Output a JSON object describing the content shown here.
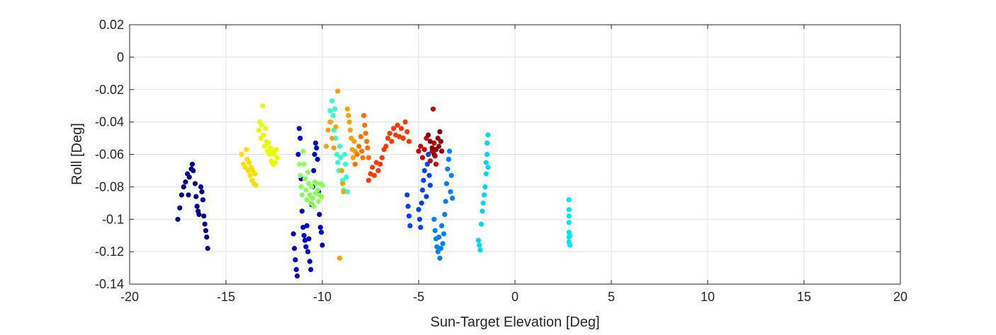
{
  "chart_data": {
    "type": "scatter",
    "title": "",
    "xlabel": "Sun-Target Elevation [Deg]",
    "ylabel": "Roll [Deg]",
    "xlim": [
      -20,
      20
    ],
    "ylim": [
      -0.14,
      0.02
    ],
    "x_ticks": [
      -20,
      -15,
      -10,
      -5,
      0,
      5,
      10,
      15,
      20
    ],
    "y_ticks": [
      0.02,
      0,
      -0.02,
      -0.04,
      -0.06,
      -0.08,
      -0.1,
      -0.12,
      -0.14
    ],
    "x_tick_labels": [
      "-20",
      "-15",
      "-10",
      "-5",
      "0",
      "5",
      "10",
      "15",
      "20"
    ],
    "y_tick_labels": [
      "0.02",
      "0",
      "-0.02",
      "-0.04",
      "-0.06",
      "-0.08",
      "-0.1",
      "-0.12",
      "-0.14"
    ],
    "grid": true,
    "box": true,
    "marker": "filled-circle",
    "colormap": "jet",
    "series": [
      {
        "color": "#00008F",
        "points": [
          [
            -17.5,
            -0.1
          ],
          [
            -17.4,
            -0.093
          ],
          [
            -17.3,
            -0.085
          ],
          [
            -17.2,
            -0.08
          ],
          [
            -17.1,
            -0.077
          ],
          [
            -17.0,
            -0.072
          ],
          [
            -16.95,
            -0.085
          ],
          [
            -16.9,
            -0.074
          ],
          [
            -16.8,
            -0.069
          ],
          [
            -16.75,
            -0.066
          ],
          [
            -16.7,
            -0.07
          ],
          [
            -16.6,
            -0.078
          ],
          [
            -16.55,
            -0.086
          ],
          [
            -16.5,
            -0.092
          ],
          [
            -16.45,
            -0.095
          ],
          [
            -16.4,
            -0.097
          ],
          [
            -16.3,
            -0.08
          ],
          [
            -16.25,
            -0.083
          ],
          [
            -16.2,
            -0.088
          ],
          [
            -16.15,
            -0.098
          ],
          [
            -16.1,
            -0.103
          ],
          [
            -16.05,
            -0.107
          ],
          [
            -16.0,
            -0.111
          ],
          [
            -15.95,
            -0.118
          ]
        ]
      },
      {
        "color": "#0000CF",
        "points": [
          [
            -11.5,
            -0.109
          ],
          [
            -11.45,
            -0.118
          ],
          [
            -11.4,
            -0.125
          ],
          [
            -11.35,
            -0.131
          ],
          [
            -11.3,
            -0.135
          ],
          [
            -11.25,
            -0.06
          ],
          [
            -11.2,
            -0.044
          ],
          [
            -11.15,
            -0.05
          ],
          [
            -11.1,
            -0.075
          ],
          [
            -11.05,
            -0.095
          ],
          [
            -11.0,
            -0.105
          ],
          [
            -10.95,
            -0.11
          ],
          [
            -10.9,
            -0.113
          ],
          [
            -10.85,
            -0.117
          ],
          [
            -10.8,
            -0.104
          ],
          [
            -10.75,
            -0.12
          ],
          [
            -10.7,
            -0.112
          ],
          [
            -10.65,
            -0.126
          ],
          [
            -10.6,
            -0.131
          ],
          [
            -10.55,
            -0.091
          ],
          [
            -10.5,
            -0.08
          ],
          [
            -10.45,
            -0.07
          ],
          [
            -10.4,
            -0.06
          ],
          [
            -10.35,
            -0.053
          ],
          [
            -10.3,
            -0.056
          ],
          [
            -10.25,
            -0.063
          ],
          [
            -10.2,
            -0.083
          ],
          [
            -10.15,
            -0.097
          ],
          [
            -10.1,
            -0.105
          ],
          [
            -10.05,
            -0.108
          ],
          [
            -10.0,
            -0.116
          ]
        ]
      },
      {
        "color": "#FFDD00",
        "points": [
          [
            -14.2,
            -0.06
          ],
          [
            -14.1,
            -0.066
          ],
          [
            -14.0,
            -0.068
          ],
          [
            -13.95,
            -0.057
          ],
          [
            -13.9,
            -0.063
          ],
          [
            -13.85,
            -0.07
          ],
          [
            -13.8,
            -0.065
          ],
          [
            -13.75,
            -0.073
          ],
          [
            -13.7,
            -0.068
          ],
          [
            -13.65,
            -0.076
          ],
          [
            -13.6,
            -0.07
          ],
          [
            -13.55,
            -0.078
          ],
          [
            -13.5,
            -0.072
          ],
          [
            -13.45,
            -0.079
          ]
        ]
      },
      {
        "color": "#E6FF00",
        "points": [
          [
            -13.3,
            -0.045
          ],
          [
            -13.25,
            -0.04
          ],
          [
            -13.2,
            -0.05
          ],
          [
            -13.15,
            -0.042
          ],
          [
            -13.1,
            -0.03
          ],
          [
            -13.05,
            -0.048
          ],
          [
            -13.0,
            -0.055
          ],
          [
            -12.95,
            -0.044
          ],
          [
            -12.9,
            -0.052
          ],
          [
            -12.85,
            -0.058
          ],
          [
            -12.8,
            -0.053
          ],
          [
            -12.75,
            -0.06
          ],
          [
            -12.7,
            -0.056
          ],
          [
            -12.65,
            -0.064
          ],
          [
            -12.6,
            -0.058
          ],
          [
            -12.55,
            -0.066
          ],
          [
            -12.5,
            -0.06
          ],
          [
            -12.45,
            -0.065
          ],
          [
            -12.4,
            -0.057
          ],
          [
            -12.35,
            -0.062
          ]
        ]
      },
      {
        "color": "#8CFF5A",
        "points": [
          [
            -11.2,
            -0.066
          ],
          [
            -11.15,
            -0.073
          ],
          [
            -11.1,
            -0.08
          ],
          [
            -11.05,
            -0.085
          ],
          [
            -11.0,
            -0.058
          ],
          [
            -10.95,
            -0.066
          ],
          [
            -10.9,
            -0.075
          ],
          [
            -10.85,
            -0.082
          ],
          [
            -10.8,
            -0.088
          ],
          [
            -10.75,
            -0.071
          ],
          [
            -10.7,
            -0.078
          ],
          [
            -10.65,
            -0.085
          ],
          [
            -10.6,
            -0.09
          ],
          [
            -10.55,
            -0.08
          ],
          [
            -10.5,
            -0.087
          ],
          [
            -10.45,
            -0.092
          ],
          [
            -10.4,
            -0.077
          ],
          [
            -10.35,
            -0.084
          ],
          [
            -10.3,
            -0.078
          ],
          [
            -10.25,
            -0.082
          ],
          [
            -10.2,
            -0.089
          ],
          [
            -10.15,
            -0.085
          ],
          [
            -10.1,
            -0.078
          ],
          [
            -10.05,
            -0.086
          ],
          [
            -10.0,
            -0.079
          ]
        ]
      },
      {
        "color": "#33FFCC",
        "points": [
          [
            -9.6,
            -0.033
          ],
          [
            -9.55,
            -0.04
          ],
          [
            -9.5,
            -0.027
          ],
          [
            -9.45,
            -0.036
          ],
          [
            -9.4,
            -0.045
          ],
          [
            -9.35,
            -0.032
          ],
          [
            -9.3,
            -0.05
          ],
          [
            -9.25,
            -0.06
          ],
          [
            -9.2,
            -0.065
          ],
          [
            -9.15,
            -0.07
          ],
          [
            -9.1,
            -0.055
          ],
          [
            -9.05,
            -0.062
          ],
          [
            -9.0,
            -0.07
          ],
          [
            -8.95,
            -0.076
          ],
          [
            -8.9,
            -0.082
          ],
          [
            -8.85,
            -0.06
          ],
          [
            -8.8,
            -0.066
          ],
          [
            -8.75,
            -0.074
          ],
          [
            -8.7,
            -0.083
          ]
        ]
      },
      {
        "color": "#FFA000",
        "points": [
          [
            -9.8,
            -0.055
          ],
          [
            -9.7,
            -0.045
          ],
          [
            -9.6,
            -0.04
          ],
          [
            -9.5,
            -0.05
          ],
          [
            -9.4,
            -0.056
          ],
          [
            -9.3,
            -0.043
          ],
          [
            -9.2,
            -0.021
          ],
          [
            -9.1,
            -0.124
          ],
          [
            -9.0,
            -0.07
          ],
          [
            -8.95,
            -0.078
          ],
          [
            -8.9,
            -0.083
          ],
          [
            -8.7,
            -0.032
          ],
          [
            -8.65,
            -0.036
          ],
          [
            -8.6,
            -0.04
          ],
          [
            -8.55,
            -0.045
          ],
          [
            -8.5,
            -0.05
          ],
          [
            -8.45,
            -0.057
          ],
          [
            -8.4,
            -0.062
          ],
          [
            -8.35,
            -0.052
          ],
          [
            -8.3,
            -0.058
          ]
        ]
      },
      {
        "color": "#FF7000",
        "points": [
          [
            -8.3,
            -0.066
          ],
          [
            -8.2,
            -0.06
          ],
          [
            -8.1,
            -0.055
          ],
          [
            -8.0,
            -0.049
          ],
          [
            -7.95,
            -0.058
          ],
          [
            -7.9,
            -0.062
          ],
          [
            -7.85,
            -0.036
          ],
          [
            -7.8,
            -0.042
          ],
          [
            -7.75,
            -0.047
          ],
          [
            -7.7,
            -0.052
          ],
          [
            -7.65,
            -0.056
          ],
          [
            -7.6,
            -0.062
          ]
        ]
      },
      {
        "color": "#FF3A00",
        "points": [
          [
            -7.6,
            -0.076
          ],
          [
            -7.5,
            -0.072
          ],
          [
            -7.4,
            -0.068
          ],
          [
            -7.3,
            -0.073
          ],
          [
            -7.2,
            -0.065
          ],
          [
            -7.1,
            -0.07
          ],
          [
            -7.0,
            -0.066
          ],
          [
            -6.9,
            -0.062
          ],
          [
            -6.8,
            -0.057
          ],
          [
            -6.7,
            -0.055
          ],
          [
            -6.6,
            -0.05
          ],
          [
            -6.5,
            -0.047
          ],
          [
            -6.4,
            -0.052
          ],
          [
            -6.3,
            -0.044
          ],
          [
            -6.2,
            -0.048
          ],
          [
            -6.1,
            -0.042
          ],
          [
            -6.0,
            -0.049
          ],
          [
            -5.9,
            -0.044
          ],
          [
            -5.8,
            -0.05
          ],
          [
            -5.7,
            -0.04
          ],
          [
            -5.6,
            -0.046
          ],
          [
            -5.5,
            -0.052
          ]
        ]
      },
      {
        "color": "#CC0000",
        "points": [
          [
            -5.0,
            -0.058
          ],
          [
            -4.9,
            -0.055
          ],
          [
            -4.8,
            -0.062
          ],
          [
            -4.7,
            -0.057
          ],
          [
            -4.6,
            -0.05
          ],
          [
            -4.5,
            -0.06
          ],
          [
            -4.4,
            -0.064
          ],
          [
            -4.3,
            -0.058
          ],
          [
            -4.25,
            -0.032
          ],
          [
            -4.2,
            -0.053
          ],
          [
            -4.15,
            -0.061
          ],
          [
            -4.1,
            -0.066
          ]
        ]
      },
      {
        "color": "#8F0000",
        "points": [
          [
            -4.5,
            -0.048
          ],
          [
            -4.4,
            -0.052
          ],
          [
            -4.3,
            -0.056
          ],
          [
            -4.2,
            -0.06
          ],
          [
            -4.1,
            -0.057
          ],
          [
            -4.0,
            -0.05
          ],
          [
            -3.95,
            -0.055
          ],
          [
            -3.9,
            -0.046
          ],
          [
            -3.85,
            -0.052
          ],
          [
            -3.8,
            -0.058
          ]
        ]
      },
      {
        "color": "#0040FF",
        "points": [
          [
            -5.6,
            -0.085
          ],
          [
            -5.55,
            -0.092
          ],
          [
            -5.5,
            -0.098
          ],
          [
            -5.45,
            -0.104
          ],
          [
            -5.0,
            -0.094
          ],
          [
            -4.95,
            -0.1
          ],
          [
            -4.9,
            -0.105
          ],
          [
            -4.85,
            -0.09
          ],
          [
            -4.8,
            -0.082
          ],
          [
            -4.75,
            -0.076
          ],
          [
            -4.7,
            -0.07
          ],
          [
            -4.6,
            -0.086
          ],
          [
            -4.55,
            -0.066
          ],
          [
            -4.5,
            -0.06
          ],
          [
            -4.45,
            -0.073
          ],
          [
            -4.4,
            -0.079
          ]
        ]
      },
      {
        "color": "#0080FF",
        "points": [
          [
            -4.2,
            -0.1
          ],
          [
            -4.15,
            -0.107
          ],
          [
            -4.1,
            -0.112
          ],
          [
            -4.05,
            -0.117
          ],
          [
            -4.0,
            -0.12
          ],
          [
            -3.95,
            -0.111
          ],
          [
            -3.9,
            -0.124
          ],
          [
            -3.85,
            -0.118
          ],
          [
            -3.8,
            -0.104
          ],
          [
            -3.75,
            -0.115
          ],
          [
            -3.7,
            -0.109
          ],
          [
            -3.65,
            -0.097
          ],
          [
            -3.6,
            -0.089
          ],
          [
            -3.55,
            -0.078
          ],
          [
            -3.5,
            -0.069
          ],
          [
            -3.45,
            -0.063
          ],
          [
            -3.4,
            -0.058
          ],
          [
            -3.35,
            -0.083
          ],
          [
            -3.3,
            -0.073
          ],
          [
            -3.25,
            -0.087
          ]
        ]
      },
      {
        "color": "#00D5FF",
        "points": [
          [
            -1.9,
            -0.113
          ],
          [
            -1.85,
            -0.116
          ],
          [
            -1.8,
            -0.119
          ],
          [
            -1.75,
            -0.103
          ],
          [
            -1.7,
            -0.095
          ],
          [
            -1.65,
            -0.09
          ],
          [
            -1.6,
            -0.085
          ],
          [
            -1.55,
            -0.08
          ],
          [
            -1.5,
            -0.072
          ],
          [
            -1.5,
            -0.065
          ],
          [
            -1.45,
            -0.06
          ],
          [
            -1.45,
            -0.053
          ],
          [
            -1.4,
            -0.048
          ],
          [
            -1.4,
            -0.068
          ]
        ]
      },
      {
        "color": "#00E5FF",
        "points": [
          [
            2.8,
            -0.088
          ],
          [
            2.8,
            -0.094
          ],
          [
            2.8,
            -0.098
          ],
          [
            2.8,
            -0.102
          ],
          [
            2.8,
            -0.108
          ],
          [
            2.8,
            -0.111
          ],
          [
            2.8,
            -0.114
          ],
          [
            2.85,
            -0.116
          ],
          [
            2.85,
            -0.11
          ]
        ]
      }
    ]
  }
}
